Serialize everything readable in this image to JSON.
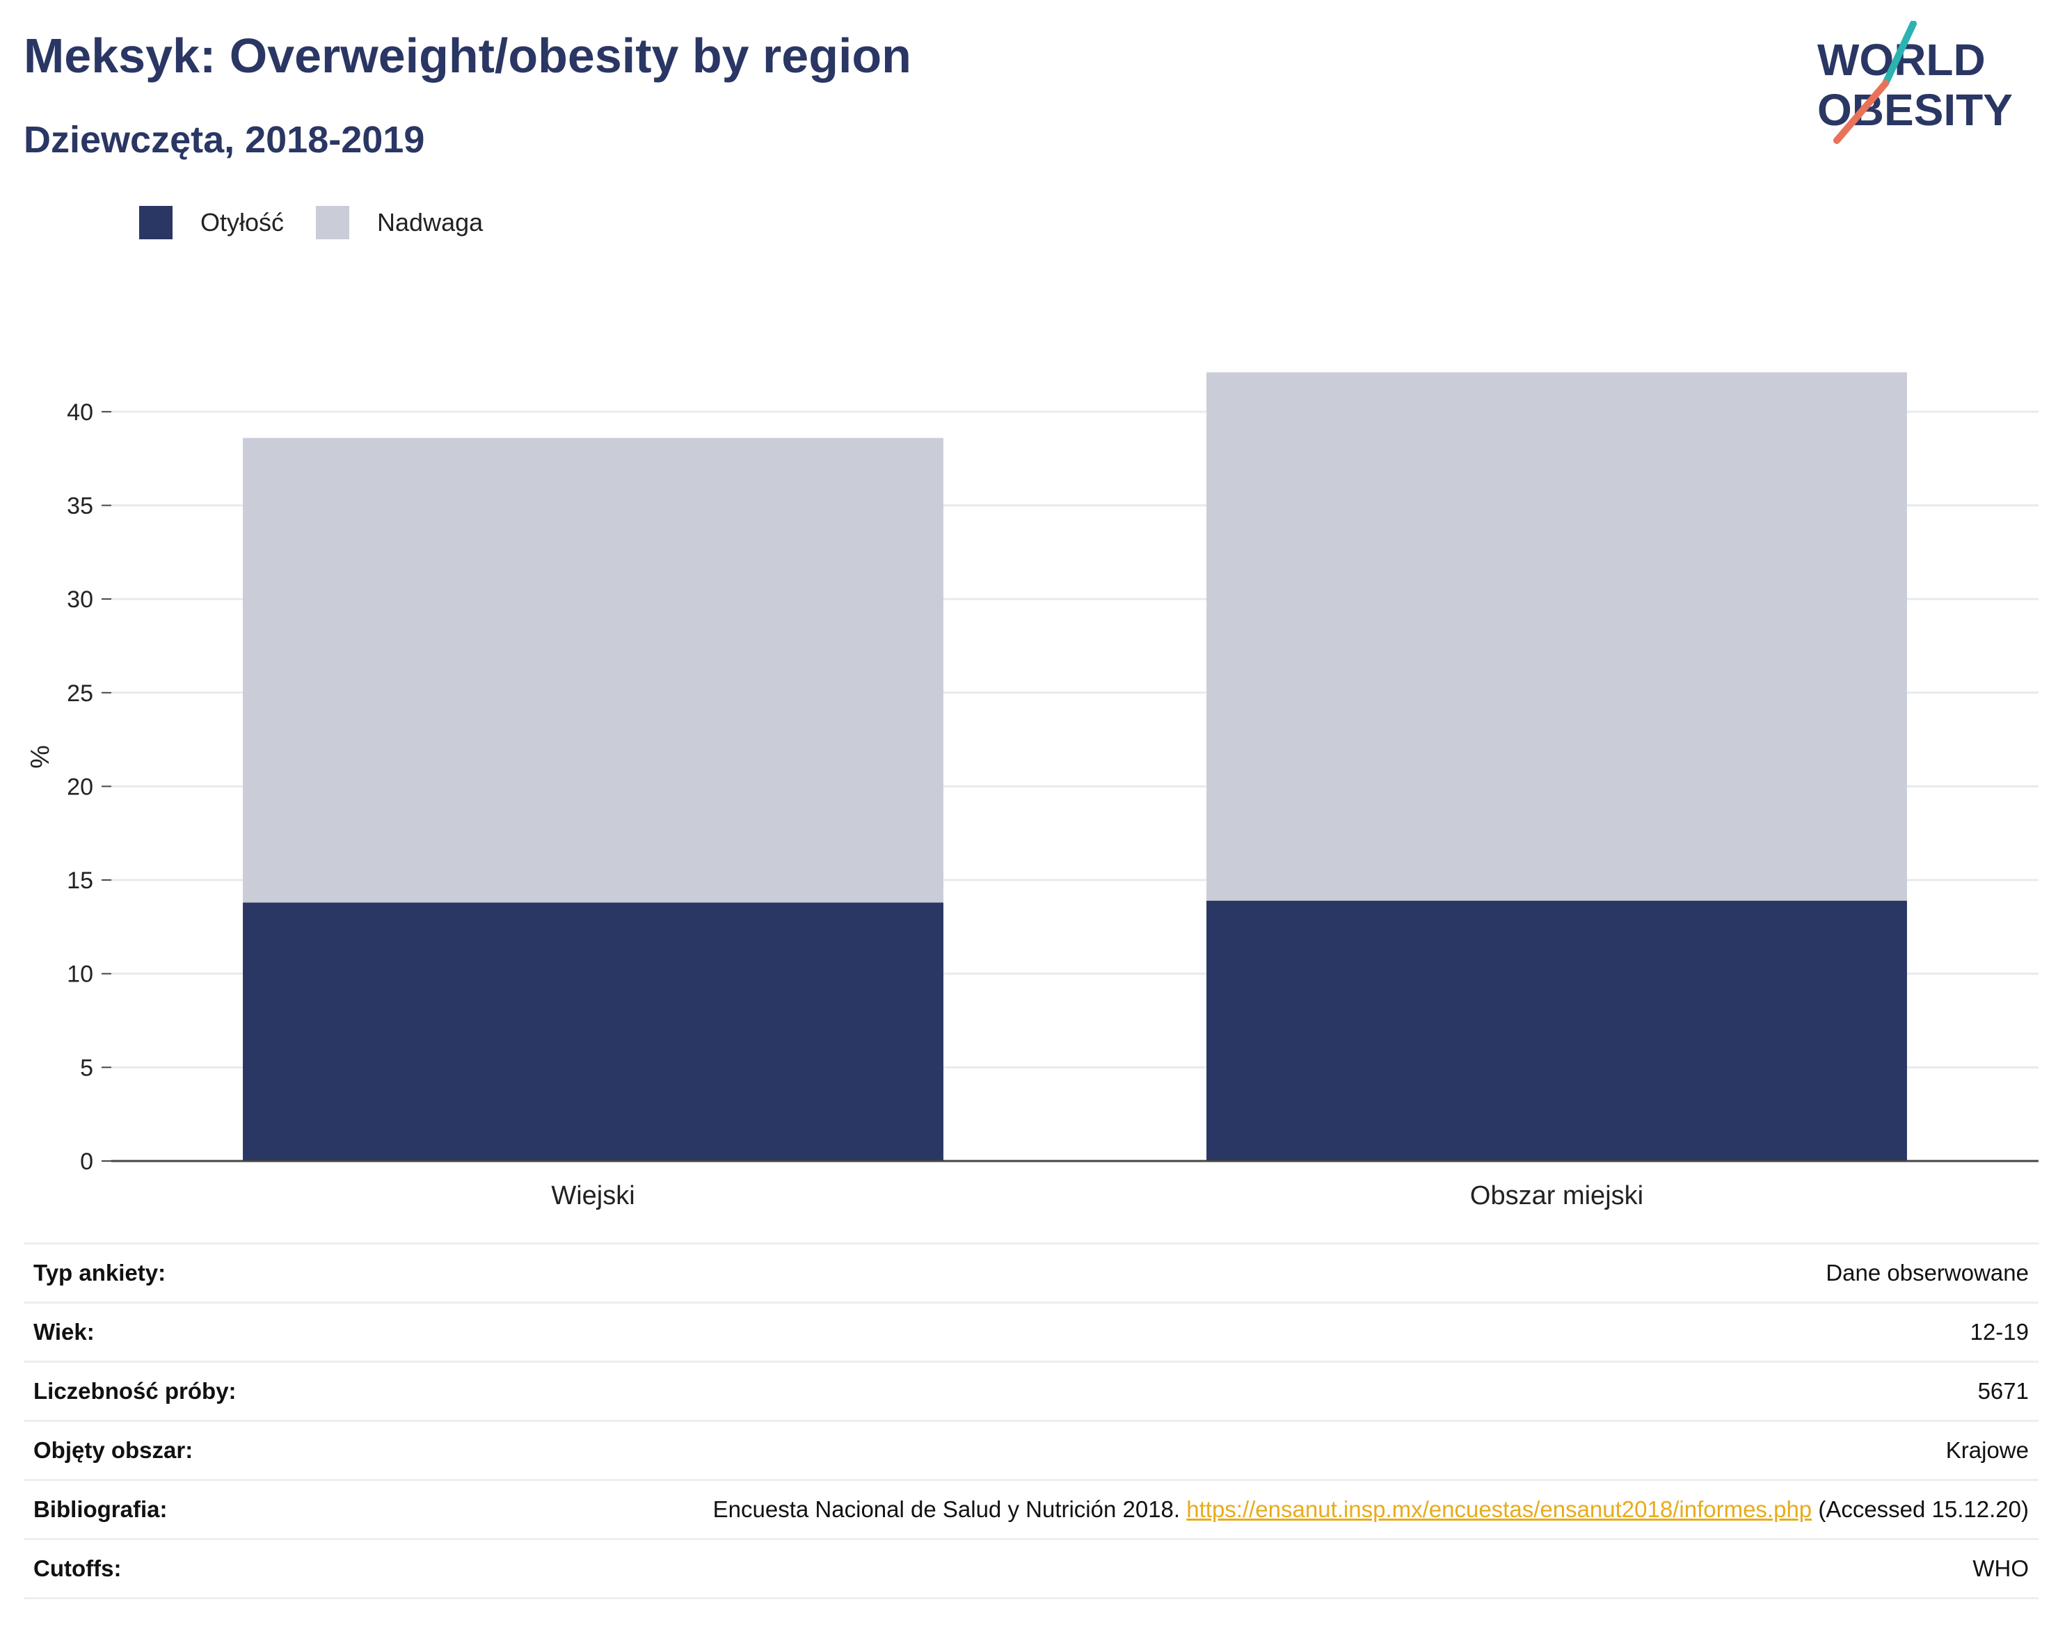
{
  "header": {
    "title": "Meksyk: Overweight/obesity by region",
    "subtitle": "Dziewczęta, 2018-2019"
  },
  "logo": {
    "line1": "WORLD",
    "line2": "OBESITY"
  },
  "colors": {
    "obesity": "#2a3663",
    "overweight": "#cacdd8",
    "accent_teal": "#2bb3b1",
    "accent_coral": "#e8735a",
    "link": "#e7ab1c"
  },
  "chart_data": {
    "type": "bar",
    "stacked": true,
    "categories": [
      "Wiejski",
      "Obszar miejski"
    ],
    "series": [
      {
        "name": "Otyłość",
        "values": [
          13.8,
          13.9
        ]
      },
      {
        "name": "Nadwaga",
        "values": [
          24.8,
          28.2
        ]
      }
    ],
    "ylabel": "%",
    "ylim": [
      0,
      42
    ],
    "yticks": [
      0,
      5,
      10,
      15,
      20,
      25,
      30,
      35,
      40
    ],
    "grid": true,
    "legend_position": "top-left"
  },
  "info": {
    "rows": [
      {
        "label": "Typ ankiety:",
        "value": "Dane obserwowane"
      },
      {
        "label": "Wiek:",
        "value": "12-19"
      },
      {
        "label": "Liczebność próby:",
        "value": "5671"
      },
      {
        "label": "Objęty obszar:",
        "value": "Krajowe"
      }
    ],
    "bibliography": {
      "label": "Bibliografia:",
      "prefix": "Encuesta Nacional de Salud y Nutrición 2018. ",
      "link": "https://ensanut.insp.mx/encuestas/ensanut2018/informes.php",
      "suffix": " (Accessed 15.12.20)"
    },
    "cutoffs": {
      "label": "Cutoffs:",
      "value": "WHO"
    }
  }
}
